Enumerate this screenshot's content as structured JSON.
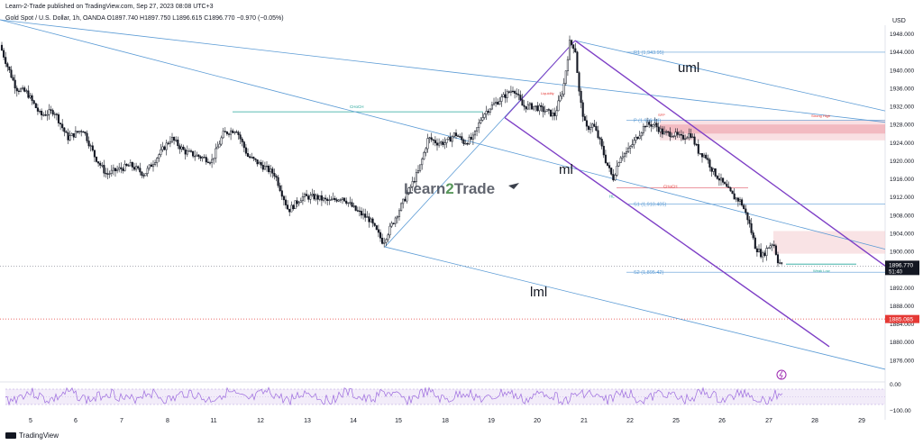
{
  "publish_line": "Learn-2-Trade published on TradingView.com, Sep 27, 2023 08:08 UTC+3",
  "symbol_line": "Gold Spot / U.S. Dollar, 1h, OANDA  O1897.740  H1897.750  L1896.615  C1896.770  −0.970 (−0.05%)",
  "currency": "USD",
  "footer_brand": "TradingView",
  "watermark": {
    "part1": "Learn",
    "part2": "2",
    "part3": "Trade"
  },
  "colors": {
    "candle": "#131722",
    "channel": "#7e3fc6",
    "fib_line": "#5b9bd5",
    "pivot_line": "#2196f3",
    "zone_fill": "#f4c7cc",
    "zone_stroke": "#e57380",
    "price_label_bg": "#131722",
    "alert_label_bg": "#e53935",
    "rsi_line": "#9c6ade",
    "rsi_band": "#ede4f7"
  },
  "chart_data": {
    "type": "candlestick",
    "timeframe": "1h",
    "ylim": [
      1872,
      1949.5
    ],
    "y_ticks": [
      "1948.000",
      "1944.000",
      "1940.000",
      "1936.000",
      "1932.000",
      "1928.000",
      "1924.000",
      "1920.000",
      "1916.000",
      "1912.000",
      "1908.000",
      "1904.000",
      "1900.000",
      "1896.000",
      "1892.000",
      "1888.000",
      "1884.000",
      "1880.000",
      "1876.000"
    ],
    "x_ticks": [
      "5",
      "6",
      "7",
      "8",
      "11",
      "12",
      "13",
      "14",
      "15",
      "18",
      "19",
      "20",
      "21",
      "22",
      "25",
      "26",
      "27",
      "28",
      "29"
    ],
    "last_price": {
      "value": "1896.770",
      "countdown": "51:40"
    },
    "alert_price": "1885.085",
    "close_path": [
      [
        0,
        1945.5
      ],
      [
        8,
        1941
      ],
      [
        18,
        1936
      ],
      [
        30,
        1935
      ],
      [
        45,
        1930
      ],
      [
        60,
        1931
      ],
      [
        75,
        1925
      ],
      [
        92,
        1927
      ],
      [
        105,
        1921
      ],
      [
        118,
        1917
      ],
      [
        130,
        1918
      ],
      [
        145,
        1919
      ],
      [
        160,
        1917
      ],
      [
        175,
        1921
      ],
      [
        190,
        1925
      ],
      [
        205,
        1922
      ],
      [
        220,
        1921
      ],
      [
        235,
        1920
      ],
      [
        248,
        1926
      ],
      [
        262,
        1927
      ],
      [
        275,
        1921
      ],
      [
        290,
        1919
      ],
      [
        305,
        1917
      ],
      [
        320,
        1909
      ],
      [
        335,
        1912
      ],
      [
        350,
        1912
      ],
      [
        365,
        1911
      ],
      [
        380,
        1912
      ],
      [
        395,
        1909
      ],
      [
        410,
        1907
      ],
      [
        425,
        1902
      ],
      [
        440,
        1908
      ],
      [
        455,
        1914
      ],
      [
        465,
        1918
      ],
      [
        475,
        1925
      ],
      [
        485,
        1924
      ],
      [
        495,
        1924
      ],
      [
        505,
        1926
      ],
      [
        515,
        1924
      ],
      [
        525,
        1925
      ],
      [
        535,
        1930
      ],
      [
        545,
        1932
      ],
      [
        558,
        1934
      ],
      [
        570,
        1936
      ],
      [
        580,
        1932
      ],
      [
        592,
        1932
      ],
      [
        605,
        1931
      ],
      [
        615,
        1930
      ],
      [
        625,
        1936
      ],
      [
        632,
        1946
      ],
      [
        638,
        1945
      ],
      [
        643,
        1934
      ],
      [
        650,
        1927
      ],
      [
        658,
        1928
      ],
      [
        666,
        1924
      ],
      [
        672,
        1920
      ],
      [
        680,
        1916
      ],
      [
        688,
        1921
      ],
      [
        696,
        1922
      ],
      [
        706,
        1925
      ],
      [
        716,
        1928
      ],
      [
        726,
        1928
      ],
      [
        736,
        1926
      ],
      [
        746,
        1926
      ],
      [
        756,
        1925
      ],
      [
        766,
        1926
      ],
      [
        775,
        1922
      ],
      [
        783,
        1921
      ],
      [
        790,
        1918
      ],
      [
        798,
        1916
      ],
      [
        806,
        1914
      ],
      [
        814,
        1912
      ],
      [
        822,
        1911
      ],
      [
        830,
        1907
      ],
      [
        838,
        1901
      ],
      [
        846,
        1899
      ],
      [
        852,
        1901
      ],
      [
        858,
        1902
      ],
      [
        863,
        1898
      ],
      [
        868,
        1896.8
      ]
    ],
    "lines": [
      {
        "name": "uml",
        "from": [
          638,
          1946.5
        ],
        "to": [
          982,
          1897
        ]
      },
      {
        "name": "ml",
        "from": [
          638,
          1946.5
        ],
        "to": [
          982,
          1896.5
        ]
      },
      {
        "name": "lml",
        "from": [
          427,
          1901
        ],
        "to": [
          982,
          1875
        ]
      }
    ],
    "rsi": {
      "ylim": [
        -100,
        0
      ],
      "ticks": [
        "0.00",
        "−100.00"
      ]
    }
  },
  "annotations": {
    "uml": "uml",
    "ml": "ml",
    "lml": "lml",
    "choch_left": "CHoCH",
    "choch_right": "CHoCH",
    "r1": "R1 (1,943.95)",
    "pivot": "P (1,928.94)",
    "s1": "S1 (1,910.405)",
    "s2": "S2 (1,895.42)",
    "strong_high": "Strong High",
    "weak_low": "Weak Low",
    "hl": "HL",
    "liquidity": "Liquidity",
    "sfp": "SFP"
  }
}
